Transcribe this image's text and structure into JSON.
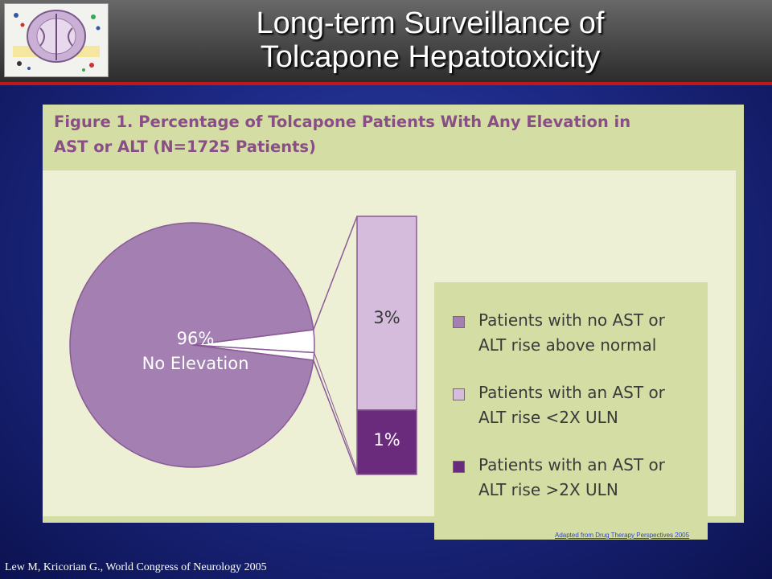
{
  "slide": {
    "title_line1": "Long-term Surveillance of",
    "title_line2": "Tolcapone Hepatotoxicity",
    "citation": "Lew M, Kricorian G., World Congress of Neurology 2005",
    "source_link": "Adapted from Drug Therapy Perspectives 2005",
    "colors": {
      "header_bar": "#3a3a3a",
      "header_rule": "#c01818",
      "background": "#1d2a86",
      "figure_frame": "#d4dea4",
      "plot_background": "#eef0d6",
      "title_text": "#8a4e86"
    },
    "logo": {
      "icon": "brain-scan-logo-icon"
    }
  },
  "figure": {
    "title_line1": "Figure 1. Percentage of Tolcapone Patients With Any Elevation in",
    "title_line2": "AST or ALT (N=1725 Patients)"
  },
  "chart_data": {
    "type": "pie",
    "title": "Figure 1. Percentage of Tolcapone Patients With Any Elevation in AST or ALT (N=1725 Patients)",
    "slices": [
      {
        "label": "96%\nNo Elevation",
        "value": 96,
        "color": "#a47fb1"
      },
      {
        "label": "3%",
        "value": 3,
        "color": "#d6bcdc"
      },
      {
        "label": "1%",
        "value": 1,
        "color": "#6a2b7c"
      }
    ],
    "pie_label_line1": "96%",
    "pie_label_line2": "No Elevation",
    "breakout_bar": [
      {
        "label": "3%",
        "value": 3,
        "color": "#d6bcdc"
      },
      {
        "label": "1%",
        "value": 1,
        "color": "#6a2b7c"
      }
    ],
    "legend": [
      {
        "line1": "Patients with no AST or",
        "line2": "ALT rise above normal",
        "color": "#a47fb1"
      },
      {
        "line1": "Patients with an AST or",
        "line2": "ALT rise <2X ULN",
        "color": "#d6bcdc"
      },
      {
        "line1": "Patients with an AST or",
        "line2": "ALT rise >2X ULN",
        "color": "#6a2b7c"
      }
    ],
    "legend_position": "right"
  }
}
